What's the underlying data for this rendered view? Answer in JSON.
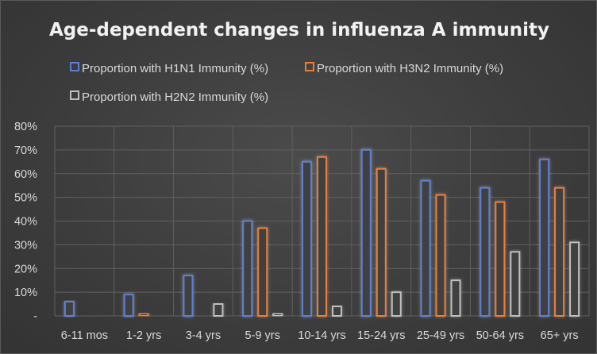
{
  "chart_data": {
    "type": "bar",
    "title": "Age-dependent changes in influenza A immunity",
    "xlabel": "",
    "ylabel": "",
    "ylim": [
      0,
      80
    ],
    "ytick_labels": [
      "-",
      "10%",
      "20%",
      "30%",
      "40%",
      "50%",
      "60%",
      "70%",
      "80%"
    ],
    "categories": [
      "6-11 mos",
      "1-2 yrs",
      "3-4 yrs",
      "5-9 yrs",
      "10-14 yrs",
      "15-24 yrs",
      "25-49 yrs",
      "50-64 yrs",
      "65+ yrs"
    ],
    "series": [
      {
        "name": "Proportion with H1N1 Immunity (%)",
        "color": "#5b7fd6",
        "values": [
          6,
          9,
          17,
          40,
          65,
          70,
          57,
          54,
          66
        ]
      },
      {
        "name": "Proportion with H3N2 Immunity (%)",
        "color": "#ed7d31",
        "values": [
          0,
          1,
          0,
          37,
          67,
          62,
          51,
          48,
          54
        ]
      },
      {
        "name": "Proportion with H2N2 Immunity (%)",
        "color": "#bfbfbf",
        "values": [
          0,
          0,
          5,
          1,
          4,
          10,
          15,
          27,
          31
        ]
      }
    ],
    "grid": true,
    "legend": "top"
  }
}
